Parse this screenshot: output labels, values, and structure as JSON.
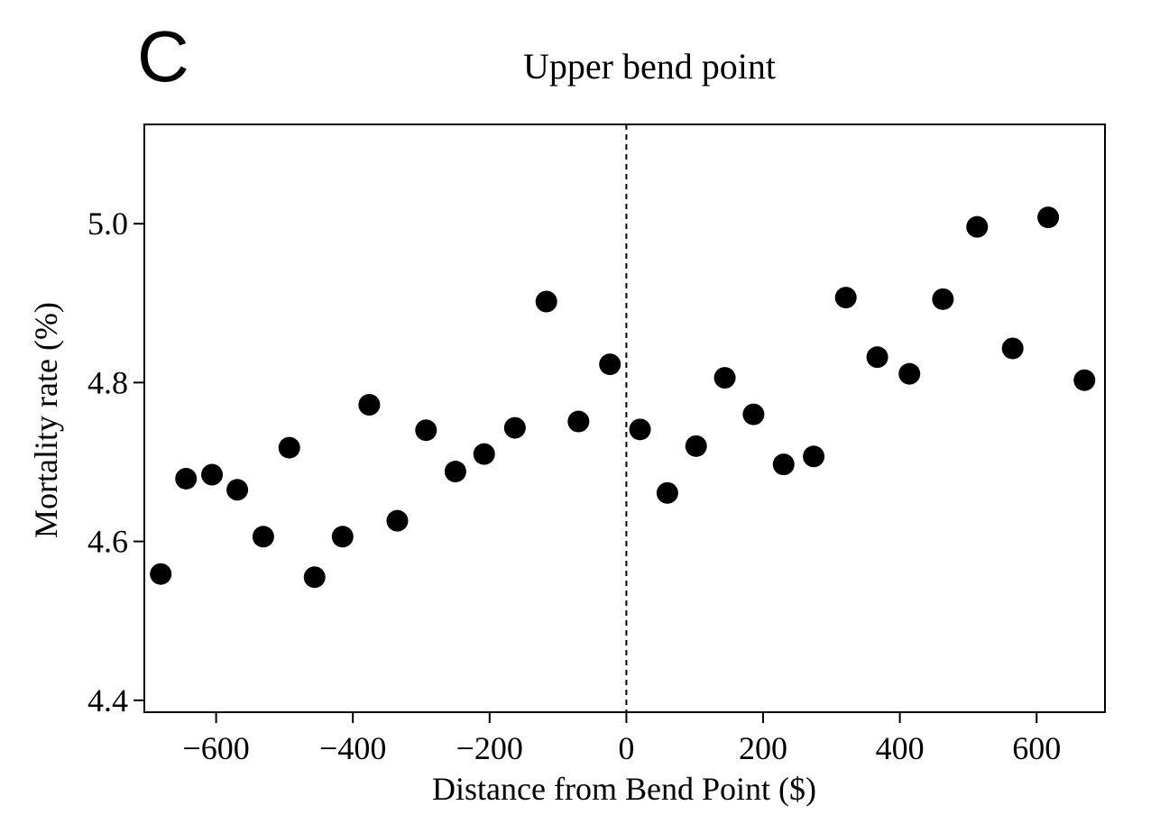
{
  "panel_letter": "C",
  "chart_data": {
    "type": "scatter",
    "title": "Upper bend point",
    "xlabel": "Distance from Bend Point ($)",
    "ylabel": "Mortality rate (%)",
    "xlim": [
      -705,
      700
    ],
    "ylim": [
      4.385,
      5.125
    ],
    "xticks": [
      -600,
      -400,
      -200,
      0,
      200,
      400,
      600
    ],
    "xtick_labels": [
      "−600",
      "−400",
      "−200",
      "0",
      "200",
      "400",
      "600"
    ],
    "yticks": [
      4.4,
      4.6,
      4.8,
      5.0
    ],
    "ytick_labels": [
      "4.4",
      "4.6",
      "4.8",
      "5.0"
    ],
    "reference_line": {
      "x": 0,
      "style": "dashed"
    },
    "grid": false,
    "legend": "none",
    "marker_color": "#000000",
    "points": [
      {
        "x": -681,
        "y": 4.559
      },
      {
        "x": -644,
        "y": 4.679
      },
      {
        "x": -606,
        "y": 4.684
      },
      {
        "x": -569,
        "y": 4.665
      },
      {
        "x": -531,
        "y": 4.606
      },
      {
        "x": -493,
        "y": 4.718
      },
      {
        "x": -456,
        "y": 4.555
      },
      {
        "x": -415,
        "y": 4.606
      },
      {
        "x": -376,
        "y": 4.772
      },
      {
        "x": -335,
        "y": 4.626
      },
      {
        "x": -293,
        "y": 4.74
      },
      {
        "x": -250,
        "y": 4.688
      },
      {
        "x": -208,
        "y": 4.71
      },
      {
        "x": -163,
        "y": 4.743
      },
      {
        "x": -117,
        "y": 4.902
      },
      {
        "x": -70,
        "y": 4.751
      },
      {
        "x": -24,
        "y": 4.823
      },
      {
        "x": 20,
        "y": 4.741
      },
      {
        "x": 60,
        "y": 4.661
      },
      {
        "x": 102,
        "y": 4.72
      },
      {
        "x": 144,
        "y": 4.806
      },
      {
        "x": 186,
        "y": 4.76
      },
      {
        "x": 230,
        "y": 4.697
      },
      {
        "x": 274,
        "y": 4.707
      },
      {
        "x": 321,
        "y": 4.907
      },
      {
        "x": 367,
        "y": 4.832
      },
      {
        "x": 414,
        "y": 4.811
      },
      {
        "x": 463,
        "y": 4.905
      },
      {
        "x": 513,
        "y": 4.996
      },
      {
        "x": 565,
        "y": 4.843
      },
      {
        "x": 617,
        "y": 5.008
      },
      {
        "x": 670,
        "y": 4.803
      }
    ]
  }
}
